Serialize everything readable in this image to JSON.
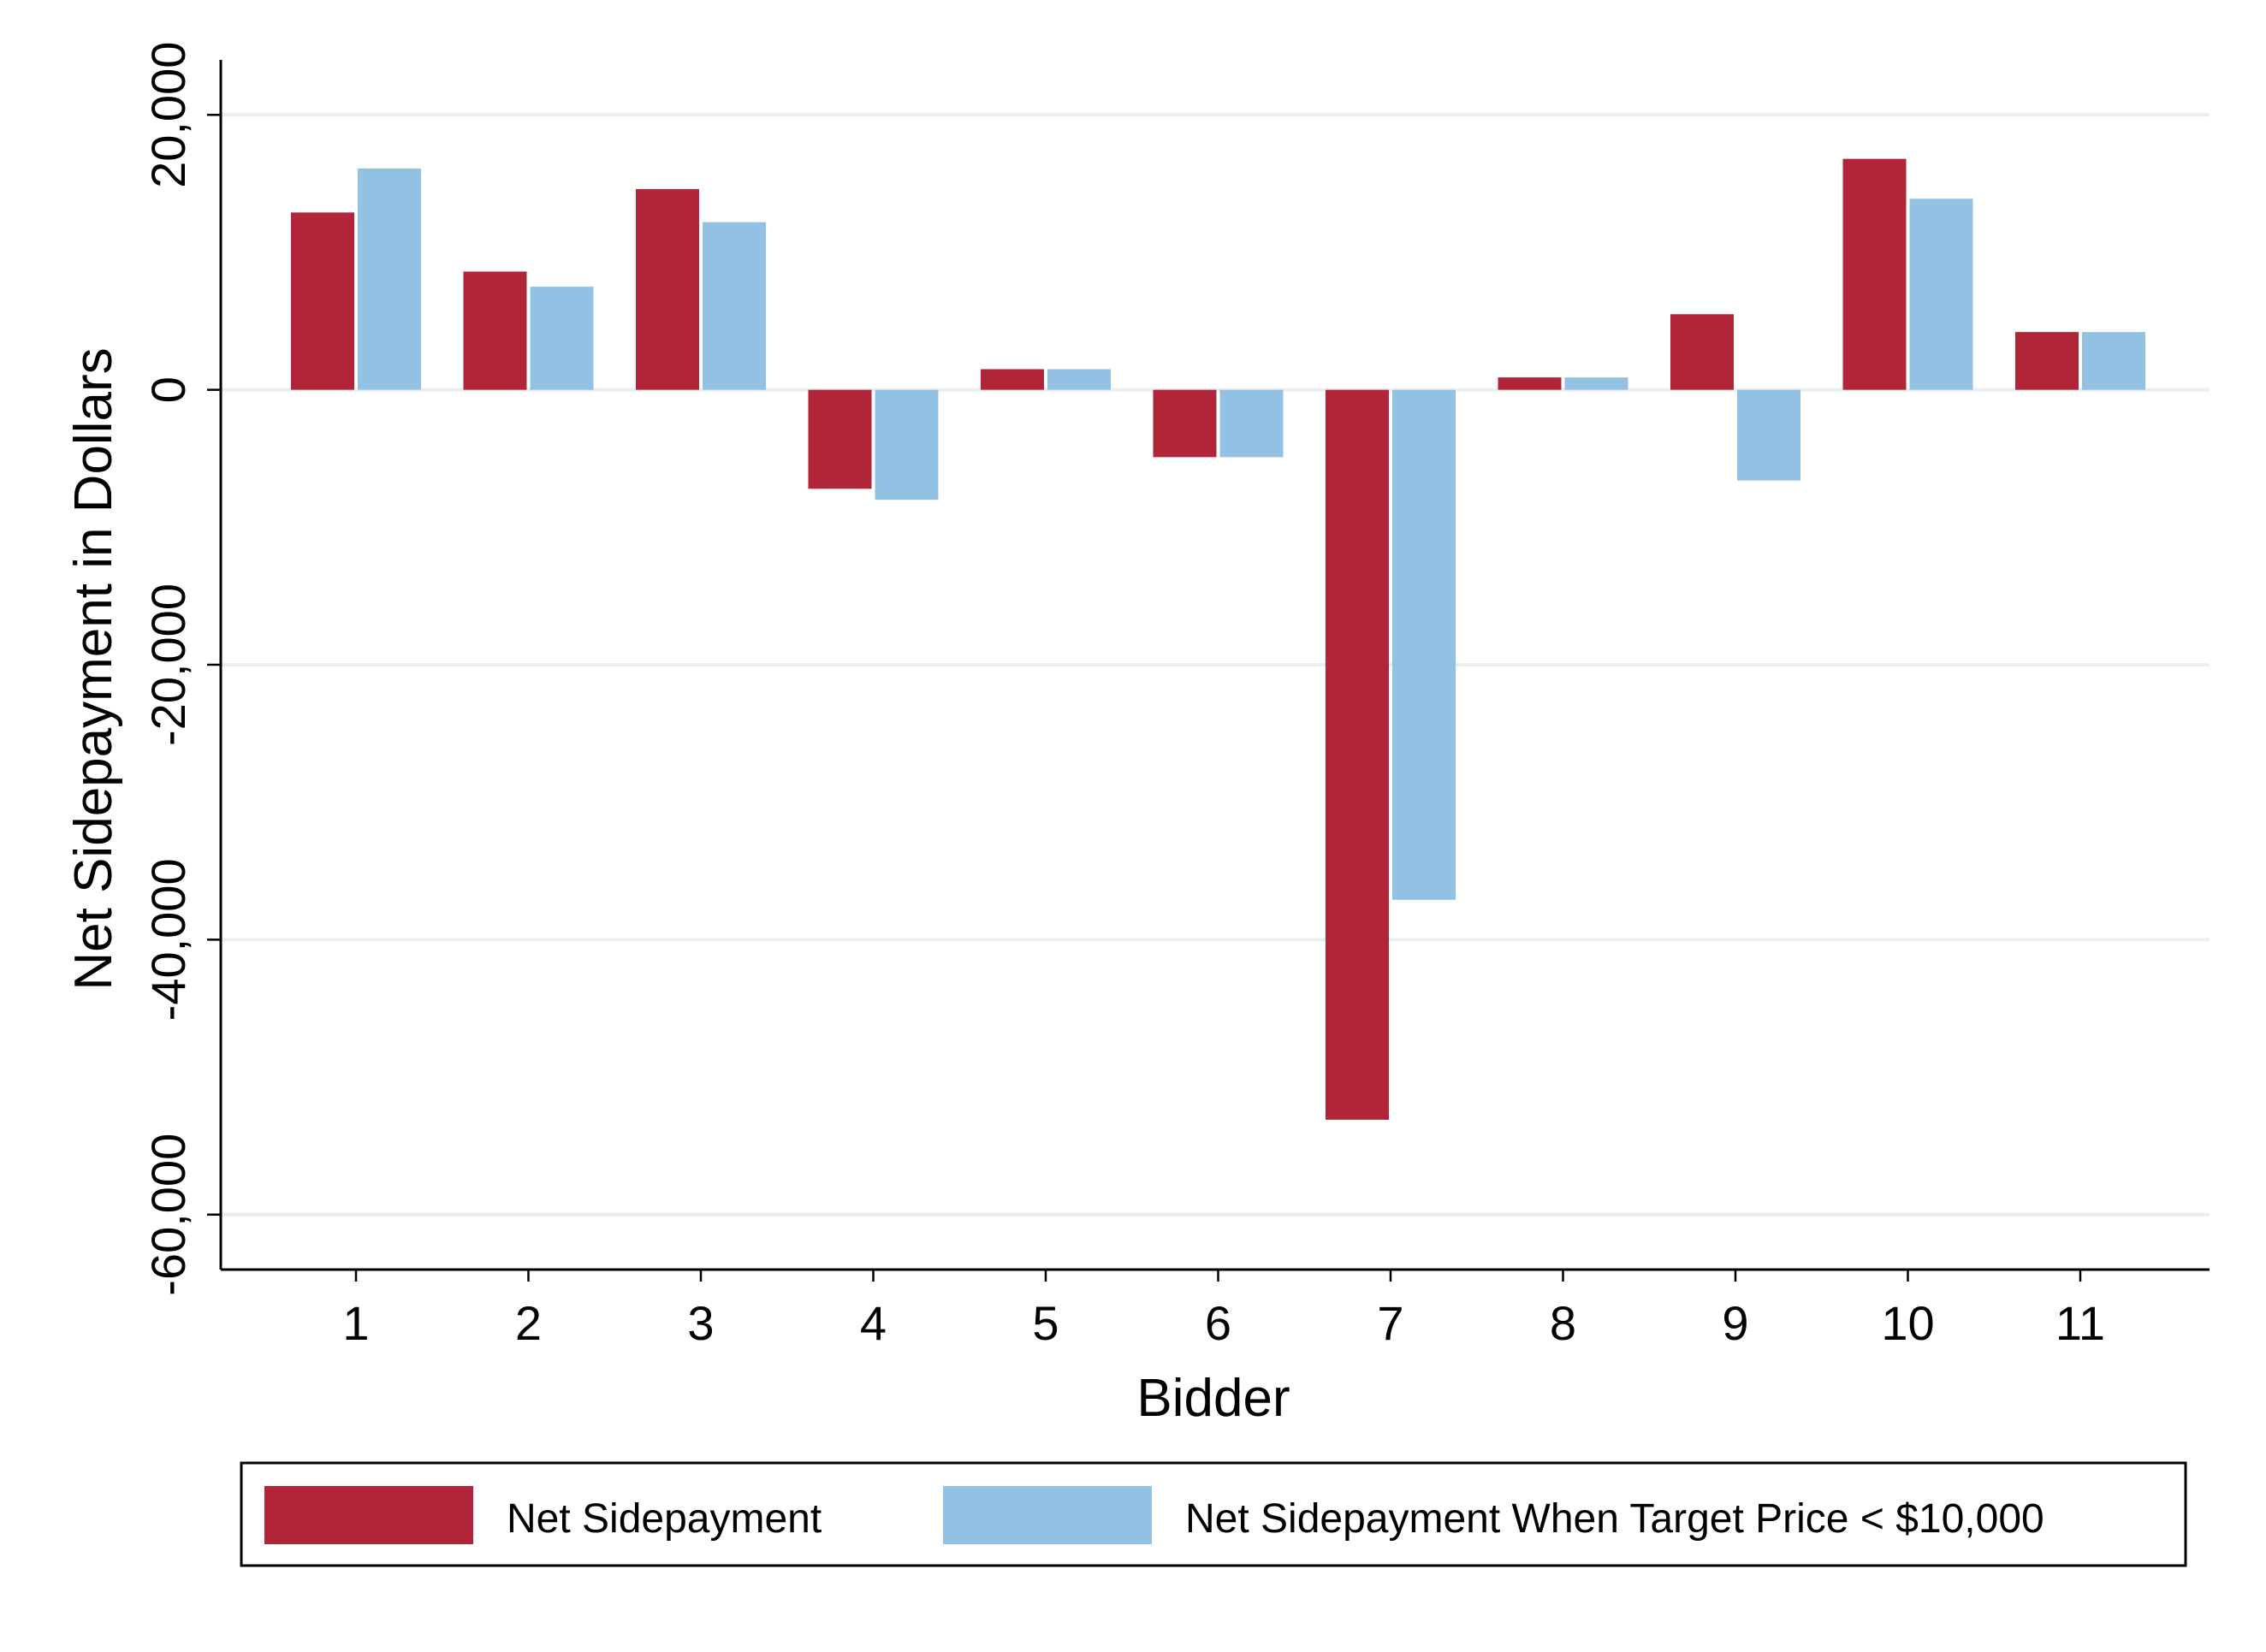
{
  "chart_data": {
    "type": "bar",
    "title": "",
    "xlabel": "Bidder",
    "ylabel": "Net Sidepayment in Dollars",
    "categories": [
      "1",
      "2",
      "3",
      "4",
      "5",
      "6",
      "7",
      "8",
      "9",
      "10",
      "11"
    ],
    "series": [
      {
        "name": "Net Sidepayment",
        "color": "#b12538",
        "values": [
          12900,
          8600,
          14600,
          -7200,
          1500,
          -4900,
          -53100,
          900,
          5500,
          16800,
          4200
        ]
      },
      {
        "name": "Net Sidepayment When Target Price < $10,000",
        "color": "#93c1e4",
        "values": [
          16100,
          7500,
          12200,
          -8000,
          1500,
          -4900,
          -37100,
          900,
          -6600,
          13900,
          4200
        ]
      }
    ],
    "ylim": [
      -64000,
      24000
    ],
    "yticks": [
      20000,
      0,
      -20000,
      -40000,
      -60000
    ],
    "ytick_labels": [
      "20,000",
      "0",
      "-20,000",
      "-40,000",
      "-60,000"
    ],
    "grid": true,
    "legend_position": "bottom"
  }
}
